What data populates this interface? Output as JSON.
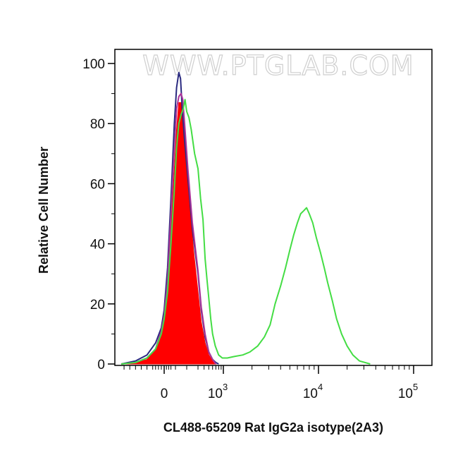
{
  "watermark": "WWW.PTGLAB.COM",
  "chart_data": {
    "type": "area",
    "title": "",
    "xlabel": "CL488-65209 Rat IgG2a isotype(2A3)",
    "ylabel": "Relative Cell Number",
    "x_scale": "biexponential",
    "xlim": [
      -300,
      100000
    ],
    "ylim": [
      0,
      100
    ],
    "x_ticks": [
      {
        "value": 0,
        "base": "0",
        "exp": ""
      },
      {
        "value": 1000,
        "base": "10",
        "exp": "3"
      },
      {
        "value": 10000,
        "base": "10",
        "exp": "4"
      },
      {
        "value": 100000,
        "base": "10",
        "exp": "5"
      }
    ],
    "y_ticks": [
      0,
      20,
      40,
      60,
      80,
      100
    ],
    "grid": false,
    "legend": "none",
    "series": [
      {
        "style": "filled",
        "color": "#ff0000",
        "points": [
          [
            -300,
            0
          ],
          [
            -200,
            0.5
          ],
          [
            -120,
            1.5
          ],
          [
            -60,
            5
          ],
          [
            -20,
            10
          ],
          [
            0,
            15
          ],
          [
            30,
            25
          ],
          [
            60,
            45
          ],
          [
            90,
            65
          ],
          [
            110,
            78
          ],
          [
            130,
            87
          ],
          [
            150,
            87
          ],
          [
            165,
            86
          ],
          [
            180,
            78
          ],
          [
            200,
            68
          ],
          [
            230,
            52
          ],
          [
            260,
            38
          ],
          [
            300,
            24
          ],
          [
            350,
            14
          ],
          [
            420,
            7
          ],
          [
            500,
            3
          ],
          [
            600,
            1
          ],
          [
            700,
            0
          ]
        ]
      },
      {
        "style": "line",
        "color": "#2a2a80",
        "points": [
          [
            -300,
            0
          ],
          [
            -200,
            1
          ],
          [
            -120,
            3
          ],
          [
            -60,
            7
          ],
          [
            -20,
            12
          ],
          [
            0,
            18
          ],
          [
            30,
            32
          ],
          [
            60,
            55
          ],
          [
            90,
            80
          ],
          [
            110,
            92
          ],
          [
            130,
            97
          ],
          [
            145,
            95
          ],
          [
            160,
            85
          ],
          [
            180,
            75
          ],
          [
            210,
            62
          ],
          [
            250,
            45
          ],
          [
            300,
            30
          ],
          [
            350,
            18
          ],
          [
            420,
            9
          ],
          [
            500,
            4
          ],
          [
            600,
            1.5
          ],
          [
            700,
            0.5
          ],
          [
            800,
            0
          ]
        ]
      },
      {
        "style": "line",
        "color": "#aa3399",
        "points": [
          [
            -300,
            0
          ],
          [
            -200,
            0.5
          ],
          [
            -120,
            2
          ],
          [
            -60,
            5
          ],
          [
            -20,
            11
          ],
          [
            0,
            16
          ],
          [
            30,
            28
          ],
          [
            60,
            50
          ],
          [
            90,
            72
          ],
          [
            110,
            85
          ],
          [
            130,
            89
          ],
          [
            150,
            90
          ],
          [
            165,
            88
          ],
          [
            185,
            78
          ],
          [
            210,
            65
          ],
          [
            250,
            47
          ],
          [
            300,
            31
          ],
          [
            350,
            19
          ],
          [
            420,
            10
          ],
          [
            500,
            4
          ],
          [
            600,
            1.5
          ],
          [
            700,
            0
          ]
        ]
      },
      {
        "style": "line",
        "color": "#44dd44",
        "points": [
          [
            -300,
            0
          ],
          [
            -200,
            0.5
          ],
          [
            -120,
            2
          ],
          [
            -60,
            5
          ],
          [
            -20,
            10
          ],
          [
            0,
            15
          ],
          [
            30,
            24
          ],
          [
            60,
            40
          ],
          [
            90,
            58
          ],
          [
            110,
            72
          ],
          [
            130,
            80
          ],
          [
            150,
            83
          ],
          [
            170,
            85
          ],
          [
            185,
            88
          ],
          [
            200,
            84
          ],
          [
            220,
            82
          ],
          [
            240,
            78
          ],
          [
            270,
            70
          ],
          [
            300,
            65
          ],
          [
            340,
            55
          ],
          [
            380,
            48
          ],
          [
            420,
            35
          ],
          [
            460,
            28
          ],
          [
            500,
            22
          ],
          [
            550,
            15
          ],
          [
            600,
            10
          ],
          [
            680,
            6
          ],
          [
            800,
            3
          ],
          [
            950,
            2
          ],
          [
            1100,
            2
          ],
          [
            1300,
            2.5
          ],
          [
            1600,
            3
          ],
          [
            1900,
            4
          ],
          [
            2300,
            6
          ],
          [
            2700,
            9
          ],
          [
            3100,
            13
          ],
          [
            3500,
            20
          ],
          [
            4000,
            26
          ],
          [
            4500,
            32
          ],
          [
            5000,
            38
          ],
          [
            5500,
            43
          ],
          [
            6000,
            47
          ],
          [
            6500,
            50
          ],
          [
            7000,
            51
          ],
          [
            7500,
            52
          ],
          [
            8000,
            50
          ],
          [
            8700,
            47
          ],
          [
            9500,
            42
          ],
          [
            10500,
            37
          ],
          [
            11500,
            32
          ],
          [
            12500,
            27
          ],
          [
            14000,
            21
          ],
          [
            15500,
            15
          ],
          [
            17500,
            10
          ],
          [
            20000,
            6
          ],
          [
            23000,
            3
          ],
          [
            27000,
            1
          ],
          [
            35000,
            0
          ]
        ]
      }
    ]
  }
}
